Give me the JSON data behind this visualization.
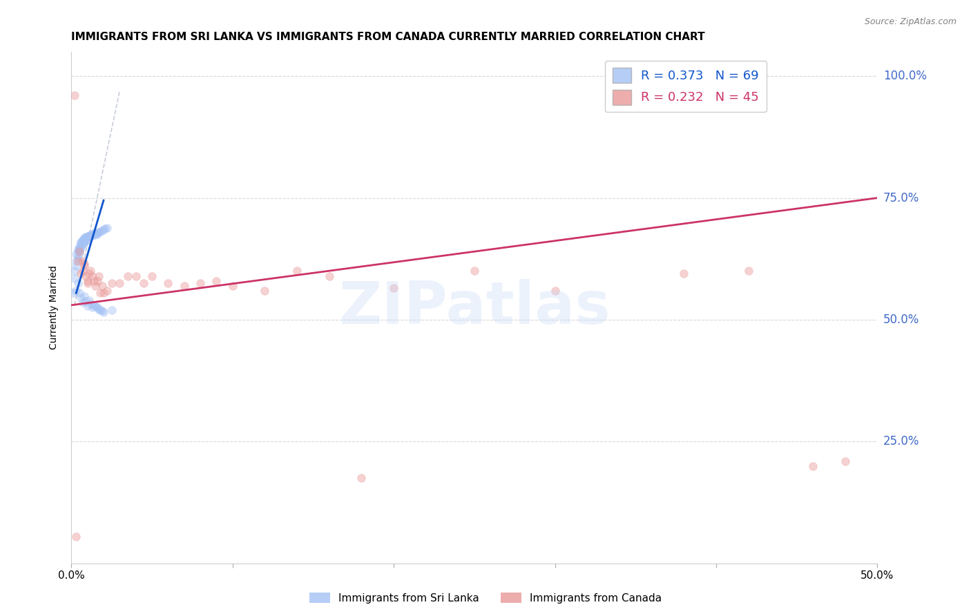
{
  "title": "IMMIGRANTS FROM SRI LANKA VS IMMIGRANTS FROM CANADA CURRENTLY MARRIED CORRELATION CHART",
  "source": "Source: ZipAtlas.com",
  "ylabel": "Currently Married",
  "y_axis_labels": [
    "100.0%",
    "75.0%",
    "50.0%",
    "25.0%"
  ],
  "y_axis_label_color": "#4169c8",
  "watermark": "ZIPatlas",
  "legend_blue_r": "0.373",
  "legend_blue_n": "69",
  "legend_pink_r": "0.232",
  "legend_pink_n": "45",
  "blue_scatter_x": [
    0.001,
    0.002,
    0.002,
    0.003,
    0.003,
    0.003,
    0.004,
    0.004,
    0.004,
    0.004,
    0.005,
    0.005,
    0.005,
    0.005,
    0.005,
    0.006,
    0.006,
    0.006,
    0.006,
    0.007,
    0.007,
    0.007,
    0.007,
    0.008,
    0.008,
    0.008,
    0.008,
    0.009,
    0.009,
    0.009,
    0.01,
    0.01,
    0.01,
    0.011,
    0.011,
    0.012,
    0.012,
    0.013,
    0.013,
    0.014,
    0.015,
    0.015,
    0.016,
    0.016,
    0.017,
    0.018,
    0.019,
    0.02,
    0.021,
    0.022,
    0.003,
    0.004,
    0.005,
    0.006,
    0.007,
    0.008,
    0.009,
    0.01,
    0.011,
    0.012,
    0.013,
    0.014,
    0.015,
    0.016,
    0.017,
    0.018,
    0.019,
    0.02,
    0.025
  ],
  "blue_scatter_y": [
    0.555,
    0.585,
    0.6,
    0.62,
    0.635,
    0.61,
    0.645,
    0.64,
    0.63,
    0.625,
    0.65,
    0.648,
    0.645,
    0.642,
    0.638,
    0.66,
    0.658,
    0.655,
    0.648,
    0.665,
    0.663,
    0.66,
    0.655,
    0.668,
    0.665,
    0.662,
    0.658,
    0.67,
    0.668,
    0.663,
    0.672,
    0.67,
    0.665,
    0.673,
    0.67,
    0.675,
    0.672,
    0.676,
    0.673,
    0.677,
    0.678,
    0.675,
    0.679,
    0.676,
    0.68,
    0.682,
    0.683,
    0.685,
    0.687,
    0.688,
    0.56,
    0.575,
    0.555,
    0.545,
    0.535,
    0.548,
    0.538,
    0.528,
    0.54,
    0.532,
    0.525,
    0.53,
    0.528,
    0.525,
    0.522,
    0.52,
    0.518,
    0.515,
    0.52
  ],
  "pink_scatter_x": [
    0.002,
    0.003,
    0.004,
    0.005,
    0.006,
    0.007,
    0.007,
    0.008,
    0.008,
    0.009,
    0.01,
    0.01,
    0.011,
    0.012,
    0.013,
    0.014,
    0.015,
    0.016,
    0.017,
    0.018,
    0.019,
    0.02,
    0.022,
    0.025,
    0.03,
    0.035,
    0.04,
    0.045,
    0.05,
    0.06,
    0.07,
    0.08,
    0.09,
    0.1,
    0.12,
    0.14,
    0.16,
    0.18,
    0.2,
    0.25,
    0.3,
    0.38,
    0.42,
    0.46,
    0.48
  ],
  "pink_scatter_y": [
    0.96,
    0.055,
    0.62,
    0.64,
    0.595,
    0.62,
    0.6,
    0.615,
    0.61,
    0.59,
    0.58,
    0.575,
    0.595,
    0.6,
    0.59,
    0.58,
    0.57,
    0.58,
    0.59,
    0.555,
    0.57,
    0.555,
    0.56,
    0.575,
    0.575,
    0.59,
    0.59,
    0.575,
    0.59,
    0.575,
    0.57,
    0.575,
    0.58,
    0.57,
    0.56,
    0.6,
    0.59,
    0.175,
    0.565,
    0.6,
    0.56,
    0.595,
    0.6,
    0.2,
    0.21
  ],
  "blue_line_x": [
    0.003,
    0.02
  ],
  "blue_line_y": [
    0.555,
    0.745
  ],
  "pink_line_x": [
    0.0,
    0.5
  ],
  "pink_line_y": [
    0.53,
    0.75
  ],
  "dashed_line_x": [
    0.002,
    0.03
  ],
  "dashed_line_y": [
    0.53,
    0.97
  ],
  "xlim": [
    0.0,
    0.5
  ],
  "ylim": [
    0.0,
    1.05
  ],
  "ytick_vals": [
    0.25,
    0.5,
    0.75,
    1.0
  ],
  "xtick_vals": [
    0.0,
    0.1,
    0.2,
    0.3,
    0.4,
    0.5
  ],
  "scatter_size": 70,
  "scatter_alpha": 0.45,
  "blue_color": "#a4c2f4",
  "pink_color": "#ea9999",
  "blue_line_color": "#1155cc",
  "pink_line_color": "#cc3366",
  "grid_color": "#d9d9d9",
  "background_color": "#ffffff",
  "title_fontsize": 11,
  "axis_label_fontsize": 10,
  "tick_label_fontsize": 10,
  "legend_fontsize": 13,
  "watermark_color": "#c9daf8",
  "watermark_alpha": 0.35,
  "dashed_line_color": "#b0b8c8",
  "source_color": "#808080"
}
